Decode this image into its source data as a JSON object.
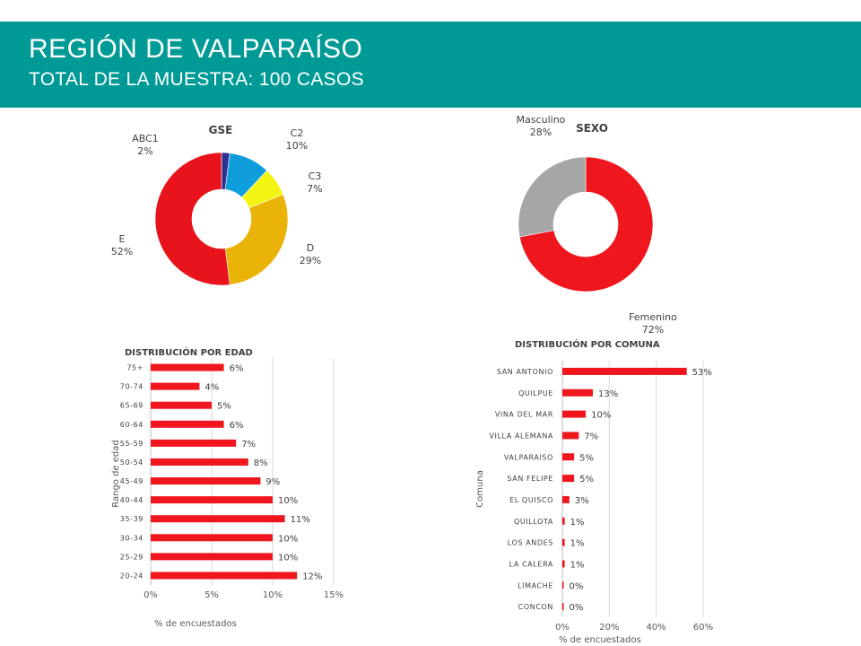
{
  "header": {
    "title": "REGIÓN DE VALPARAÍSO",
    "subtitle": "TOTAL DE LA MUESTRA: 100 CASOS",
    "background": "#009a96"
  },
  "chart_data": [
    {
      "id": "gse",
      "type": "pie",
      "title": "GSE",
      "categories": [
        "ABC1",
        "C2",
        "C3",
        "D",
        "E"
      ],
      "values": [
        2,
        10,
        7,
        29,
        52
      ],
      "labels": [
        "2%",
        "10%",
        "7%",
        "29%",
        "52%"
      ],
      "colors": [
        "#2e3192",
        "#0f9ddb",
        "#f5f513",
        "#eab308",
        "#e8131b"
      ],
      "hole": "donut"
    },
    {
      "id": "sexo",
      "type": "pie",
      "title": "SEXO",
      "categories": [
        "Femenino",
        "Masculino"
      ],
      "values": [
        72,
        28
      ],
      "labels": [
        "72%",
        "28%"
      ],
      "colors": [
        "#f0161d",
        "#a6a6a6"
      ],
      "hole": "donut"
    },
    {
      "id": "edad",
      "type": "bar",
      "orientation": "horizontal",
      "title": "DISTRIBUCIÓN POR EDAD",
      "xlabel": "% de encuestados",
      "ylabel": "Rango de edad",
      "categories": [
        "75+",
        "70-74",
        "65-69",
        "60-64",
        "55-59",
        "50-54",
        "45-49",
        "40-44",
        "35-39",
        "30-34",
        "25-29",
        "20-24"
      ],
      "values": [
        6,
        4,
        5,
        6,
        7,
        8,
        9,
        10,
        11,
        10,
        10,
        12
      ],
      "labels": [
        "6%",
        "4%",
        "5%",
        "6%",
        "7%",
        "8%",
        "9%",
        "10%",
        "11%",
        "10%",
        "10%",
        "12%"
      ],
      "xticks": [
        "0%",
        "5%",
        "10%",
        "15%"
      ],
      "xlim": [
        0,
        15
      ],
      "grid": true,
      "color": "#f0161d"
    },
    {
      "id": "comuna",
      "type": "bar",
      "orientation": "horizontal",
      "title": "DISTRIBUCIÓN POR COMUNA",
      "xlabel": "% de encuestados",
      "ylabel": "Comuna",
      "categories": [
        "SAN ANTONIO",
        "QUILPUE",
        "VINA DEL MAR",
        "VILLA ALEMANA",
        "VALPARAISO",
        "SAN FELIPE",
        "EL QUISCO",
        "QUILLOTA",
        "LOS ANDES",
        "LA CALERA",
        "LIMACHE",
        "CONCON"
      ],
      "values": [
        53,
        13,
        10,
        7,
        5,
        5,
        3,
        1,
        1,
        1,
        0.4,
        0.4
      ],
      "labels": [
        "53%",
        "13%",
        "10%",
        "7%",
        "5%",
        "5%",
        "3%",
        "1%",
        "1%",
        "1%",
        "0%",
        "0%"
      ],
      "xticks": [
        "0%",
        "20%",
        "40%",
        "60%"
      ],
      "xlim": [
        0,
        60
      ],
      "grid": true,
      "color": "#f0161d"
    }
  ]
}
